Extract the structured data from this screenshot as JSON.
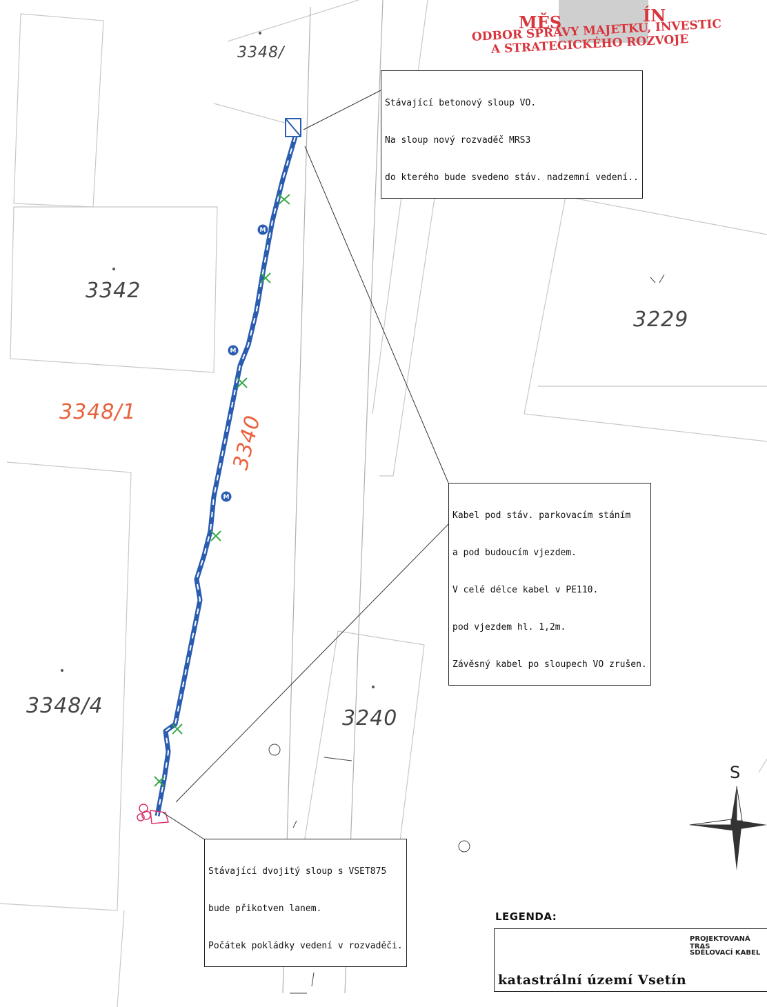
{
  "stamp": {
    "line1_visible": "MĚS",
    "line1_right": "ÍN",
    "line2": "ODBOR SPRÁVY MAJETKU, INVESTIC",
    "line3": "A STRATEGICKÉHO ROZVOJE",
    "color": "#d8343c"
  },
  "parcels": {
    "p3348_top": "3348/",
    "p3342": "3342",
    "p3229": "3229",
    "p3348_1": "3348/1",
    "p3340": "3340",
    "p3348_4": "3348/4",
    "p3240": "3240",
    "parcel_highlight_color": "#e8603c"
  },
  "notes": {
    "pole_top": {
      "line1": "Stávající betonový sloup VO.",
      "line2": "Na sloup nový rozvaděč MRS3",
      "line3": "do kterého bude svedeno stáv. nadzemní vedení.."
    },
    "cable": {
      "line1": "Kabel pod stáv. parkovacím stáním",
      "line2": "a pod budoucím vjezdem.",
      "line3": "V celé délce kabel v PE110.",
      "line4": "pod vjezdem hl. 1,2m.",
      "line5": "Závěsný kabel po sloupech VO zrušen."
    },
    "pole_bottom": {
      "line1": "Stávající dvojitý sloup s VSET875",
      "line2": "bude přikotven lanem.",
      "line3": "Počátek pokládky vedení v rozvaděči."
    }
  },
  "legend": {
    "title": "LEGENDA:",
    "items": [
      {
        "label": "PROJEKTOVANÁ TRAS",
        "color": "#3a6fd8",
        "icon": "dashed-line-icon"
      },
      {
        "label": "SDĚLOVACÍ KABEL",
        "color": "#e88aa8",
        "icon": "wave-line-icon"
      }
    ],
    "cadastral": "katastrální území Vsetín"
  },
  "north": {
    "label": "S",
    "icon": "compass-rose-icon"
  },
  "route_color": "#2a5cb0"
}
